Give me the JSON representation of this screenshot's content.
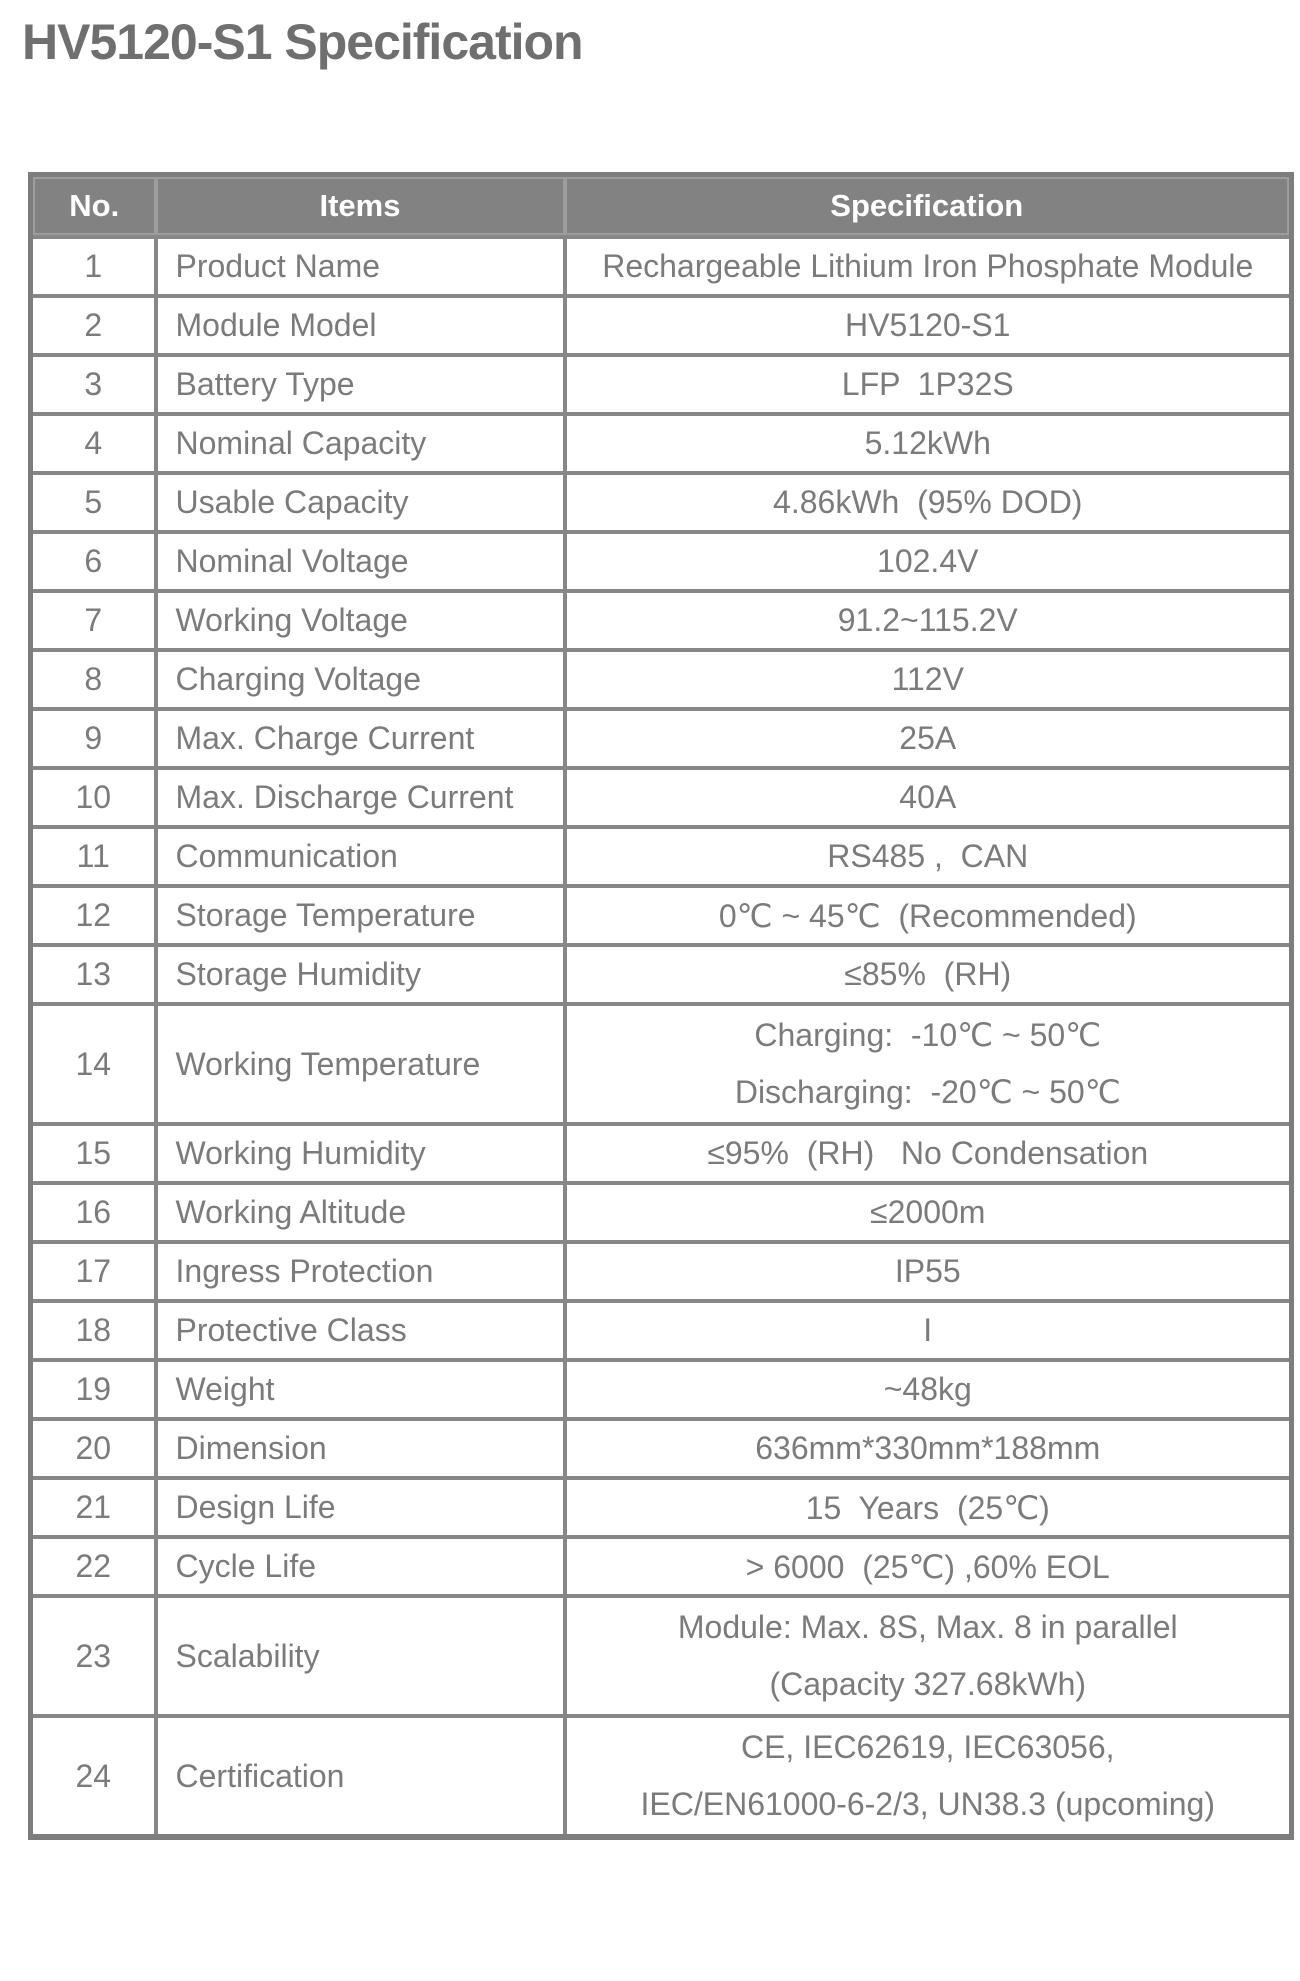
{
  "title": "HV5120-S1 Specification",
  "colors": {
    "title_text": "#6f6f6f",
    "header_background": "#828282",
    "header_text": "#ffffff",
    "cell_text": "#7b7b7b",
    "border": "#878787"
  },
  "table": {
    "headers": [
      "No.",
      "Items",
      "Specification"
    ],
    "rows": [
      {
        "no": "1",
        "item": "Product Name",
        "spec": "Rechargeable Lithium Iron Phosphate Module"
      },
      {
        "no": "2",
        "item": "Module Model",
        "spec": "HV5120-S1"
      },
      {
        "no": "3",
        "item": "Battery Type",
        "spec": "LFP  1P32S"
      },
      {
        "no": "4",
        "item": "Nominal Capacity",
        "spec": "5.12kWh"
      },
      {
        "no": "5",
        "item": "Usable Capacity",
        "spec": "4.86kWh  (95% DOD)"
      },
      {
        "no": "6",
        "item": "Nominal Voltage",
        "spec": "102.4V"
      },
      {
        "no": "7",
        "item": "Working Voltage",
        "spec": "91.2~115.2V"
      },
      {
        "no": "8",
        "item": "Charging Voltage",
        "spec": "112V"
      },
      {
        "no": "9",
        "item": "Max. Charge Current",
        "spec": "25A"
      },
      {
        "no": "10",
        "item": "Max. Discharge Current",
        "spec": "40A"
      },
      {
        "no": "11",
        "item": "Communication",
        "spec": "RS485 ,  CAN"
      },
      {
        "no": "12",
        "item": "Storage Temperature",
        "spec": "0℃ ~ 45℃  (Recommended)"
      },
      {
        "no": "13",
        "item": "Storage Humidity",
        "spec": "≤85%  (RH)"
      },
      {
        "no": "14",
        "item": "Working Temperature",
        "spec_lines": [
          "Charging:  -10℃ ~ 50℃",
          "Discharging:  -20℃ ~ 50℃"
        ]
      },
      {
        "no": "15",
        "item": "Working Humidity",
        "spec": "≤95%  (RH)   No Condensation"
      },
      {
        "no": "16",
        "item": "Working Altitude",
        "spec": "≤2000m"
      },
      {
        "no": "17",
        "item": "Ingress Protection",
        "spec": "IP55"
      },
      {
        "no": "18",
        "item": "Protective Class",
        "spec": "I"
      },
      {
        "no": "19",
        "item": "Weight",
        "spec": "~48kg"
      },
      {
        "no": "20",
        "item": "Dimension",
        "spec": "636mm*330mm*188mm"
      },
      {
        "no": "21",
        "item": "Design Life",
        "spec": "15  Years  (25℃)"
      },
      {
        "no": "22",
        "item": "Cycle Life",
        "spec": "> 6000  (25℃) ,60% EOL"
      },
      {
        "no": "23",
        "item": "Scalability",
        "spec_lines": [
          "Module: Max. 8S, Max. 8 in parallel",
          "(Capacity 327.68kWh)"
        ]
      },
      {
        "no": "24",
        "item": "Certification",
        "spec_lines": [
          "CE, IEC62619, IEC63056,",
          "IEC/EN61000-6-2/3, UN38.3 (upcoming)"
        ]
      }
    ]
  }
}
